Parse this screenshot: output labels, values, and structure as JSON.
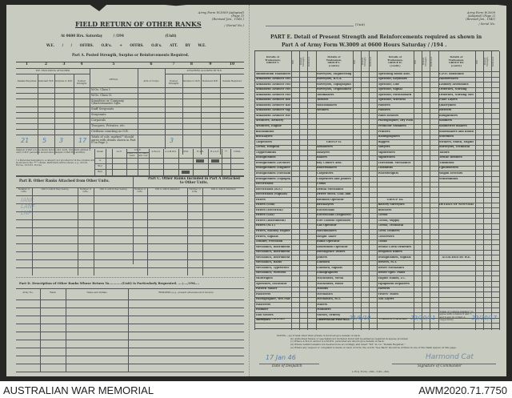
{
  "footer": {
    "left": "AUSTRALIAN WAR MEMORIAL",
    "right": "AWM2020.71.7750"
  },
  "left_page": {
    "form_ref": [
      "Army Form W.3009 (Adapted)",
      "(Page 1)",
      "(Revised Jan., 1945.)",
      "/ (Serial No.)"
    ],
    "title": "FIELD RETURN OF OTHER RANKS",
    "line1": {
      "prefix": "At 0600 Hrs. Saturday",
      "date": "/ /194",
      "unit": "(Unit)"
    },
    "line2": "W.E. / / OFFRS. O.R's. + OFFRS. O.R's. ATT. BY W.E.",
    "part_a": "Part A. Posted Strength, Surplus or Reinforcements Required.",
    "col_numbers": [
      "1",
      "2",
      "3",
      "4",
      "5",
      "6",
      "7",
      "8",
      "9",
      "10"
    ],
    "we_excl": "W.E. EXCLUDING ATTACHED",
    "att_allowed": "ATTACHED ALLOWED BY W.E.",
    "col_heads": [
      "Details Required",
      "Deficient W.E.",
      "Surplus to W.E.",
      "Posted Strength",
      "DETAIL",
      "Arm or Corps",
      "Posted Strength",
      "Surplus to W.E.",
      "Deficient W.E.",
      "Details Required"
    ],
    "rows": [
      "W.Os. Class I.",
      "W.Os. Class II.",
      "Squadron or Company Quartermaster Sgts.",
      "Staff Sergeants",
      "Sergeants",
      "Corporals",
      "Troopers, Privates, etc.",
      "Civilians counting as O.R."
    ],
    "totals_label": "Totals of cols. marked * should agree with details shown in Part E on Page 2.",
    "hw_totals": [
      "21",
      "5",
      "3",
      "17",
      "3"
    ],
    "analysis": {
      "note1": "Analysis of Part A to be shown here by ALL units. Only units entitled to carry C.M.F. personnel should show analysis of Part B(i) and B(ii).",
      "note2": "† A Personnel belonging to a category not provided for in the columns will be shown in the \"**\" column. Particulars will be shown, e.g., 20 U.K. Forces, 10 N.E.I. Forces.",
      "heads": [
        "Detail",
        "A.I.F.",
        "C.M.F.",
        "Under 19 Years",
        "19 Years and over",
        "A.W.A.S.",
        "A.A.M.W.S.",
        "CIVIL",
        "R.A.N.",
        "R.A.A.F.",
        "**",
        "TOTAL"
      ],
      "rows": [
        "A",
        "B(i)",
        "B(ii)"
      ]
    },
    "part_b": {
      "title": "Part B. Other Ranks Attached from Other Units.",
      "heads": [
        "Number of O.Rs.",
        "Unit to which they belong",
        "Number of O.Rs.",
        "Unit to which they belong"
      ]
    },
    "part_c": {
      "title": "Part C. Other Ranks Included in Part A Detached to Other Units.",
      "heads": [
        "Number of O.Rs.",
        "Unit to which detached",
        "Number of O.Rs.",
        "Unit to which detached"
      ]
    },
    "part_d": {
      "title": "Part D. Description of Other Ranks Whose Return To............(Unit) is Particularly Requested. ..../..../194....",
      "heads": [
        "Army No.",
        "Rank",
        "Name and Initials",
        "REMARKS (e.g., present whereabouts if known)"
      ]
    }
  },
  "right_page": {
    "unit_suffix": "(Unit)",
    "form_ref": [
      "Army Form W.3009",
      "(Adapted) (Page 2)",
      "(Revised Jan., 1945)",
      "/ Serial No."
    ],
    "title1": "PART E. Detail of Present Strength and Reinforcements required as shown in",
    "title2": "Part A of Army Form W.3009 at 0600 Hours Saturday / /194 .",
    "sub_heads": [
      "W.E.",
      "Posted Strength",
      "Deficient"
    ],
    "groups": [
      {
        "head": "Details of Tradesmen, GROUP I.",
        "items": [
          "Ammunition Examiners",
          "Armament Artificer Fitter",
          "Armament Artificer Fitter (Electrical)",
          "Armament Artificer Fitter (R.F.)",
          "Armament Artificer Fitter (A.F.V.)",
          "Armament Artificer Instrument",
          "Armament Artificer Radio",
          "Armament Artificer Signals",
          "Armament Artificer Wireless",
          "Artificers, Artillery",
          "Artificers, Engine",
          "Blacksmiths",
          "Bricklayers",
          "Carpenters",
          "Clerks, Hospital",
          "Coppersmiths",
          "Draughtsmen",
          "Draughtsmen (Architectural)",
          "Draughtsmen (Engineering)",
          "Draughtsmen (Mechanical)",
          "Draughtsmen (Topographical)",
          "Electricians",
          "Electricians (R.F.)",
          "Electricians (Signals)",
          "Fitters",
          "Fitters (Gun)",
          "Fitters (Electrical)",
          "Fitters (Gas)",
          "Fitters (Instrument)",
          "Fitters (M.T.)",
          "Fitters, Railway Engine",
          "Fitters, Signals",
          "Grinder, Precision",
          "Mechanics, Instrument",
          "Mechanics, Instrument (Signals)",
          "Mechanics, Instrument (Surgical)",
          "Mechanics, Radio",
          "Mechanics, Typewriter",
          "Mechanics, Wireless",
          "Millwrights",
          "Operators, Excavator",
          "Pattern Maker",
          "Plasterers",
          "Photographer, Wet Plate",
          "Plasterers",
          "Plumber",
          "Tool Setters",
          "Surveyors"
        ]
      },
      {
        "head": "Details of Tradesmen, GROUP I. (contd.)",
        "items": [
          "Surveyors, Engineering",
          "Surveyors, R.S.A.",
          "Surveyors, Topographical",
          "Surveyors, Trigonometrical",
          "Toolmakers",
          "Turners",
          "Watchmakers",
          "Welders",
          "",
          "",
          "",
          "",
          "",
          "GROUP II.",
          "Armourers",
          "Assayers",
          "Bakers",
          "Bty. Comd's Asst.",
          "Boilermakers",
          "Carpenters",
          "Carpenters and Joiners",
          "Cooks",
          "Dental Mechanics",
          "Driver Mech. (Tks. and Mot.)",
          "Bitumen Operator",
          "Bricklayers",
          "Electricians",
          "Electricians (Engineer)",
          "Fire Control Operators",
          "Gas Operator",
          "Hatchmakers",
          "Height Taker",
          "Radio Operator",
          "Instrument Operator",
          "Intelligence Duties",
          "Joiners",
          "Linemen",
          "Linemen, Signals",
          "Lithographers",
          "Machinists, Metal",
          "Machinists, Wood",
          "Masons",
          "Mechanics",
          "Mechanics, M.T.",
          "Millers",
          "Moulders",
          "Nurses, Orderly",
          "Observation Post Asst."
        ]
      },
      {
        "head": "Details of Tradesmen, GROUP II. (contd.)",
        "items": [
          "Operating Room Asst.",
          "Operator, Keyboard",
          "Operator, Line",
          "Operator, Signal",
          "Operator, Switchboard",
          "Operator, Wireless",
          "Painters",
          "Painters",
          "Panel Beaters",
          "Photographer, Dry Plate",
          "Predictor Numbers",
          "Printers",
          "Radiographers",
          "Riggers",
          "Sawyers",
          "Signwriters",
          "Signwriters",
          "Telecomm. Mechanics",
          "Tinsmiths",
          "Wheelwrights",
          "",
          "",
          "",
          "",
          "GROUP III.",
          "Battery Surveyors",
          "Butchers",
          "Clerks",
          "Clerks, Supply",
          "Clerks, Technical",
          "Clerk Trainees",
          "Concreters",
          "Cooks",
          "Dental Clerk Orderlies",
          "Despatch Riders",
          "Draughtsmen, Signals",
          "Drivers, M.T.",
          "Driver Mechanics",
          "Driver Spec. Plant",
          "Engine Hands, I.C.",
          "Equipment Repairers",
          "Farriers",
          "Fitters' Mates",
          "Gas Layers"
        ]
      },
      {
        "head": "Details of Tradesmen, GROUP III. (contd.)",
        "items": [
          "G.P.O. Assistants",
          "Hairdressers",
          "Laundry Attendants",
          "Orderlies, Nursing",
          "Orderlies, Nursing Mental",
          "Plate Layers",
          "Quarrymen",
          "Riveters",
          "Roughriders",
          "Saddlers",
          "Saddletree makers",
          "Shoemakers and Bootmakers",
          "Storemen",
          "Strikers, Smith, Engine",
          "Surveyors, Technical",
          "Tailors",
          "Textile Refiners",
          "Tinsmiths",
          "Upholsterers",
          "Wagon Erectors",
          "Whitesmiths",
          "",
          "",
          "",
          "",
          "DETAILS OF NON-TRADESMEN",
          "",
          "",
          "",
          "",
          "",
          "",
          "",
          "",
          "",
          "ATTACHED BY W.E.",
          "",
          "",
          "",
          "",
          "",
          "",
          "",
          ""
        ]
      }
    ],
    "carried_forward": "CARRIED FORWARD",
    "totals_note": "Totals of columns marked * to agree with columns 6 and 7, and 9 and 10 of Part A, respectively.",
    "hw_carried": [
      "21/8/10",
      "22/20/11",
      "22/20/17"
    ],
    "notes": [
      "NOTES.—(a) If rank other than private is involved give details on back.",
      "(b) Authorised trades or specialists not included in list will be added as required in spaces provided.",
      "(c) Where A.W.A.S. and/or A.A.M.W.S. personnel are shown give details on back.",
      "(d) Where reinforcements not desired note accordingly and insert \"Nil\" in col. \"Details Required.\"",
      "(e) Where any request or complaint is made on back of form, the words \"See Back\" should be written in one of the blank spaces on this page."
    ],
    "despatch_date_hw": "17 Jan 46",
    "date_label": "Date of Despatch",
    "signature_label": "Signature of Commander",
    "printer": "L.H.Q. Form—200—7/45—3lm."
  }
}
